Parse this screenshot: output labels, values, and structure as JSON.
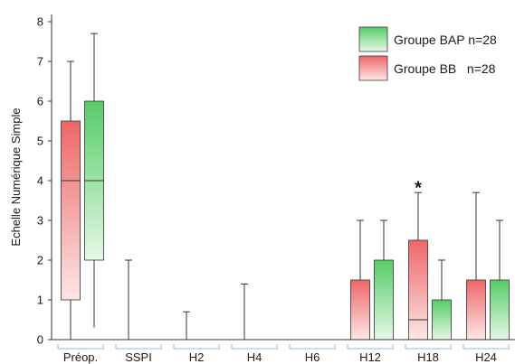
{
  "chart_data": {
    "type": "boxplot",
    "ylabel": "Echelle Numérique Simple",
    "ylim": [
      0,
      8
    ],
    "yticks": [
      0,
      1,
      2,
      3,
      4,
      5,
      6,
      7,
      8
    ],
    "categories": [
      "Préop.",
      "SSPI",
      "H2",
      "H4",
      "H6",
      "H12",
      "H18",
      "H24"
    ],
    "legend_position": "top-right",
    "series": [
      {
        "name": "Groupe BAP n=28",
        "color_top": "#55cc66",
        "color_bottom": "#e6f8e6",
        "boxes": [
          {
            "category": "Préop.",
            "min": 0.3,
            "q1": 2,
            "median": 4,
            "q3": 6,
            "max": 7.7
          },
          {
            "category": "SSPI",
            "min": 0,
            "q1": 0,
            "median": 0,
            "q3": 0,
            "max": 0
          },
          {
            "category": "H2",
            "min": 0,
            "q1": 0,
            "median": 0,
            "q3": 0,
            "max": 0
          },
          {
            "category": "H4",
            "min": 0,
            "q1": 0,
            "median": 0,
            "q3": 0,
            "max": 0
          },
          {
            "category": "H6",
            "min": 0,
            "q1": 0,
            "median": 0,
            "q3": 0,
            "max": 0
          },
          {
            "category": "H12",
            "min": 0,
            "q1": 0,
            "median": 0,
            "q3": 2,
            "max": 3
          },
          {
            "category": "H18",
            "min": 0,
            "q1": 0,
            "median": 0,
            "q3": 1,
            "max": 2
          },
          {
            "category": "H24",
            "min": 0,
            "q1": 0,
            "median": 0,
            "q3": 1.5,
            "max": 3
          }
        ]
      },
      {
        "name": "Groupe BB   n=28",
        "color_top": "#ee6666",
        "color_bottom": "#fde6e6",
        "boxes": [
          {
            "category": "Préop.",
            "min": 0,
            "q1": 1,
            "median": 4,
            "q3": 5.5,
            "max": 7
          },
          {
            "category": "SSPI",
            "min": 0,
            "q1": 0,
            "median": 0,
            "q3": 0,
            "max": 2
          },
          {
            "category": "H2",
            "min": 0,
            "q1": 0,
            "median": 0,
            "q3": 0,
            "max": 0.7
          },
          {
            "category": "H4",
            "min": 0,
            "q1": 0,
            "median": 0,
            "q3": 0,
            "max": 1.4
          },
          {
            "category": "H6",
            "min": 0,
            "q1": 0,
            "median": 0,
            "q3": 0,
            "max": 0
          },
          {
            "category": "H12",
            "min": 0,
            "q1": 0,
            "median": 0,
            "q3": 1.5,
            "max": 3
          },
          {
            "category": "H18",
            "min": 0,
            "q1": 0,
            "median": 0.5,
            "q3": 2.5,
            "max": 3.7
          },
          {
            "category": "H24",
            "min": 0,
            "q1": 0,
            "median": 0,
            "q3": 1.5,
            "max": 3.7
          }
        ]
      }
    ],
    "annotations": [
      {
        "text": "*",
        "category": "H18",
        "series": "Groupe BB   n=28",
        "y": 3.9
      }
    ]
  }
}
